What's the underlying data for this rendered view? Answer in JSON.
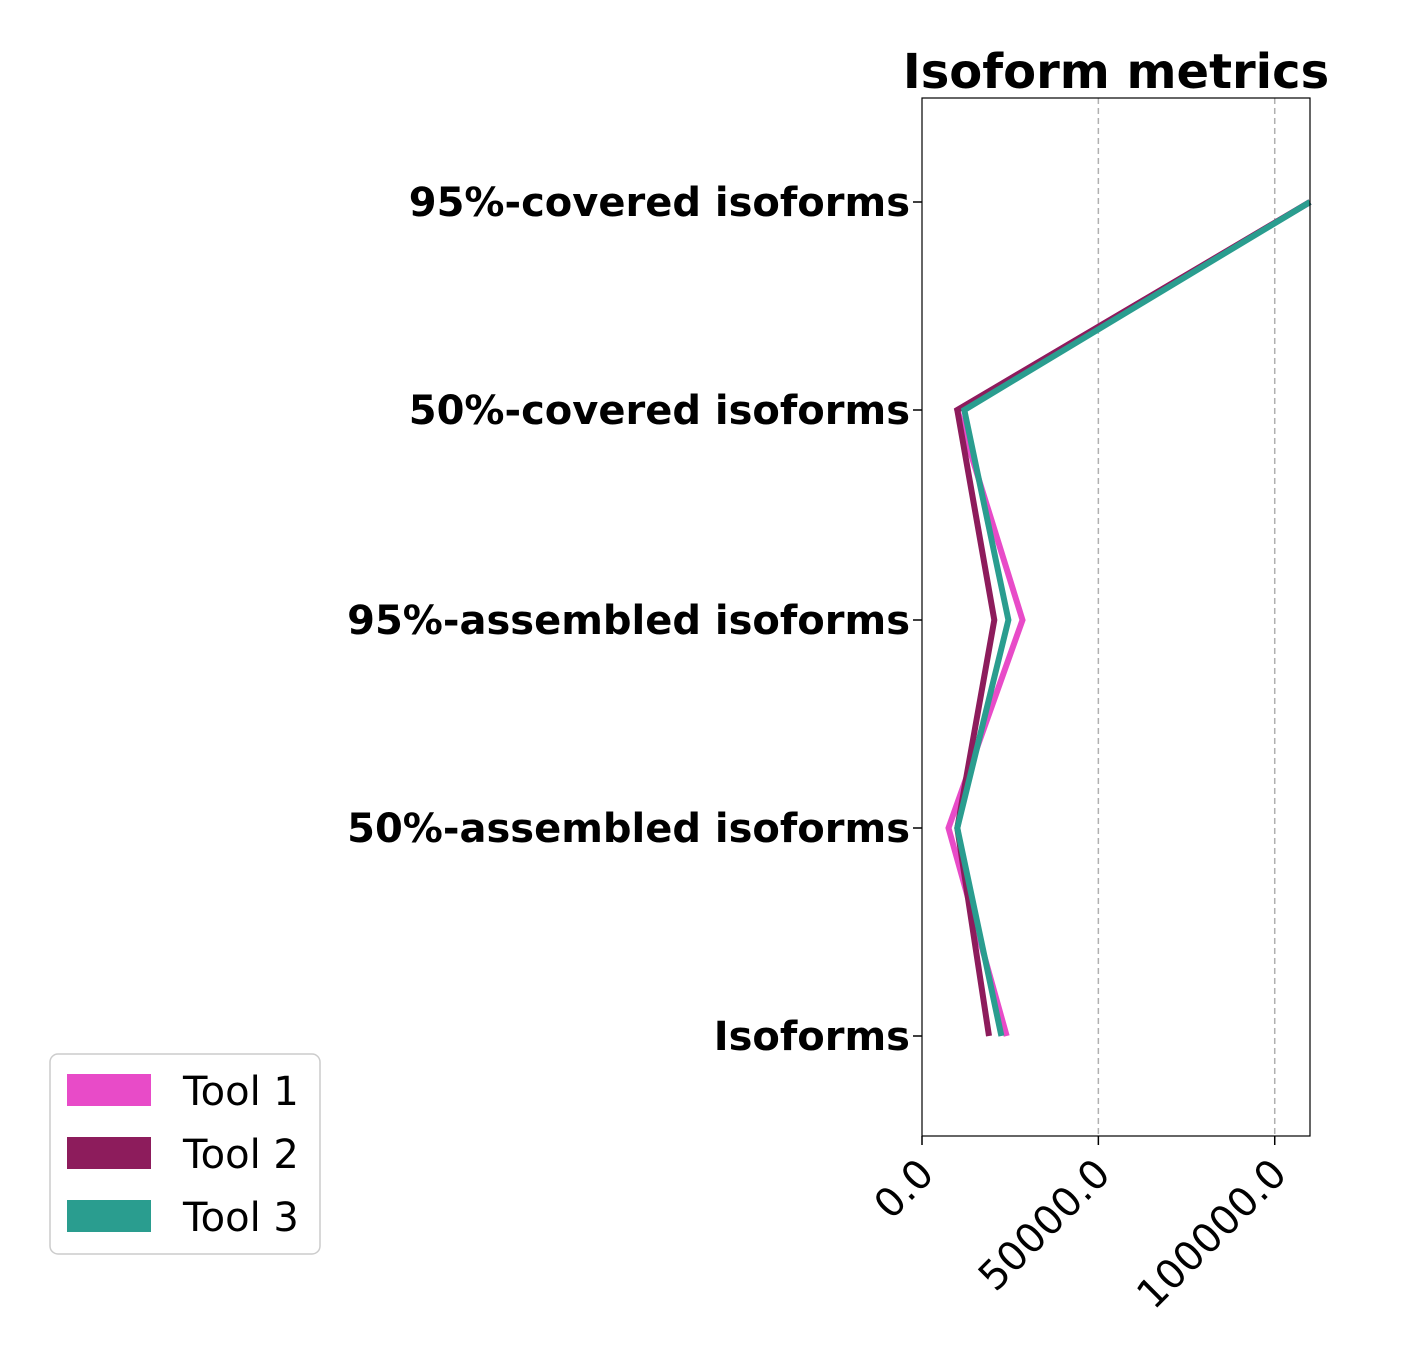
{
  "chart_data": {
    "type": "line",
    "orientation": "horizontal",
    "title": "Isoform metrics",
    "categories": [
      "Isoforms",
      "50%-assembled isoforms",
      "95%-assembled isoforms",
      "50%-covered isoforms",
      "95%-covered isoforms"
    ],
    "xlim": [
      0,
      110000
    ],
    "xticks": [
      0,
      50000,
      100000
    ],
    "xtick_labels": [
      "0.0",
      "50000.0",
      "100000.0"
    ],
    "grid": "x dashed",
    "legend_position": "lower-left",
    "series": [
      {
        "name": "Tool 1",
        "color": "#e84bc8",
        "values": [
          24000,
          7500,
          28500,
          10000,
          110000
        ]
      },
      {
        "name": "Tool 2",
        "color": "#8d1c5c",
        "values": [
          19000,
          10000,
          20500,
          10000,
          110000
        ]
      },
      {
        "name": "Tool 3",
        "color": "#2a9d8f",
        "values": [
          22500,
          10000,
          24500,
          12000,
          110000
        ]
      }
    ]
  }
}
